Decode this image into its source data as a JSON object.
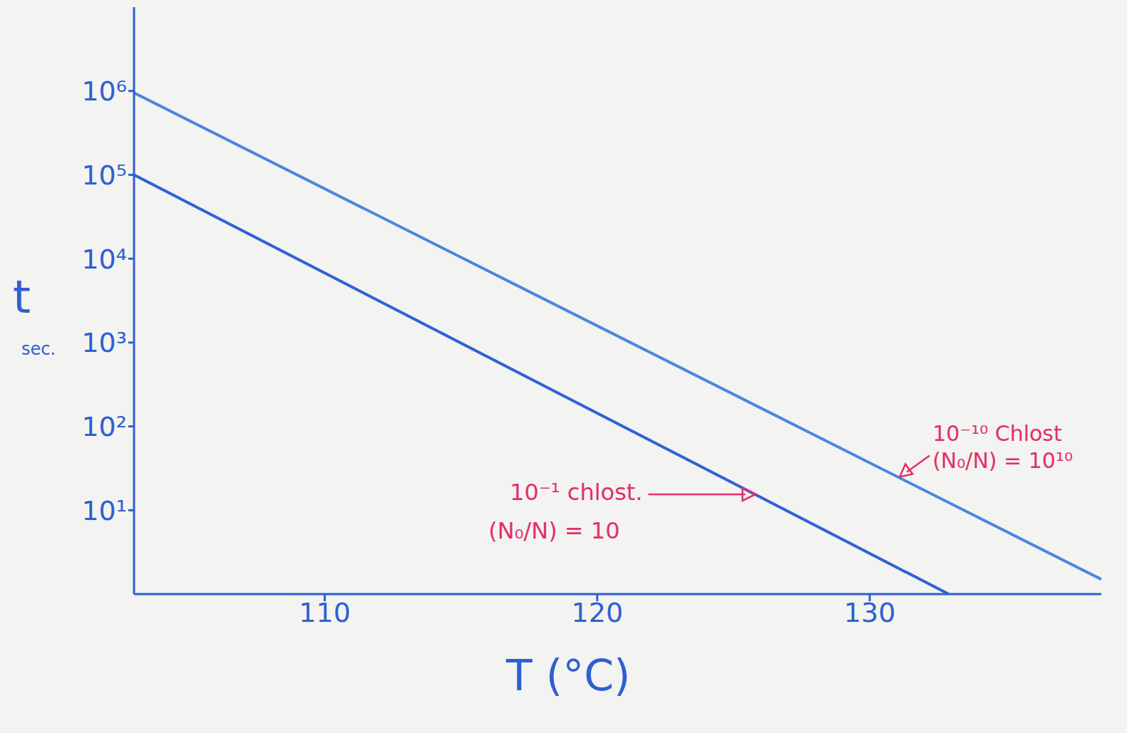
{
  "chart_data": {
    "type": "line",
    "x_label": "T (°C)",
    "y_label": "t",
    "y_unit": "sec.",
    "log": "y",
    "grid": false,
    "xlim": [
      103,
      138.5
    ],
    "xticks": [
      110,
      120,
      130
    ],
    "ylim": [
      1,
      10000000
    ],
    "yticks": [
      {
        "value": 10,
        "label": "10¹"
      },
      {
        "value": 100,
        "label": "10²"
      },
      {
        "value": 1000,
        "label": "10³"
      },
      {
        "value": 10000,
        "label": "10⁴"
      },
      {
        "value": 100000,
        "label": "10⁵"
      },
      {
        "value": 1000000,
        "label": "10⁶"
      }
    ],
    "series": [
      {
        "x": [
          103,
          132.9
        ],
        "values": [
          100000,
          1
        ],
        "color": "#2f62d6"
      },
      {
        "x": [
          103,
          138.5
        ],
        "values": [
          950000,
          1.5
        ],
        "color": "#4a86e0"
      }
    ],
    "annotations": [
      {
        "lines": [
          "10⁻¹ chlost.",
          "(N₀/N) = 10"
        ],
        "x": 125.8,
        "y": 15.5,
        "color": "#e0306a"
      },
      {
        "lines": [
          "10⁻¹⁰ Chlost",
          "(N₀/N) = 10¹⁰"
        ],
        "x": 131.1,
        "y": 25,
        "color": "#e0306a"
      }
    ]
  }
}
